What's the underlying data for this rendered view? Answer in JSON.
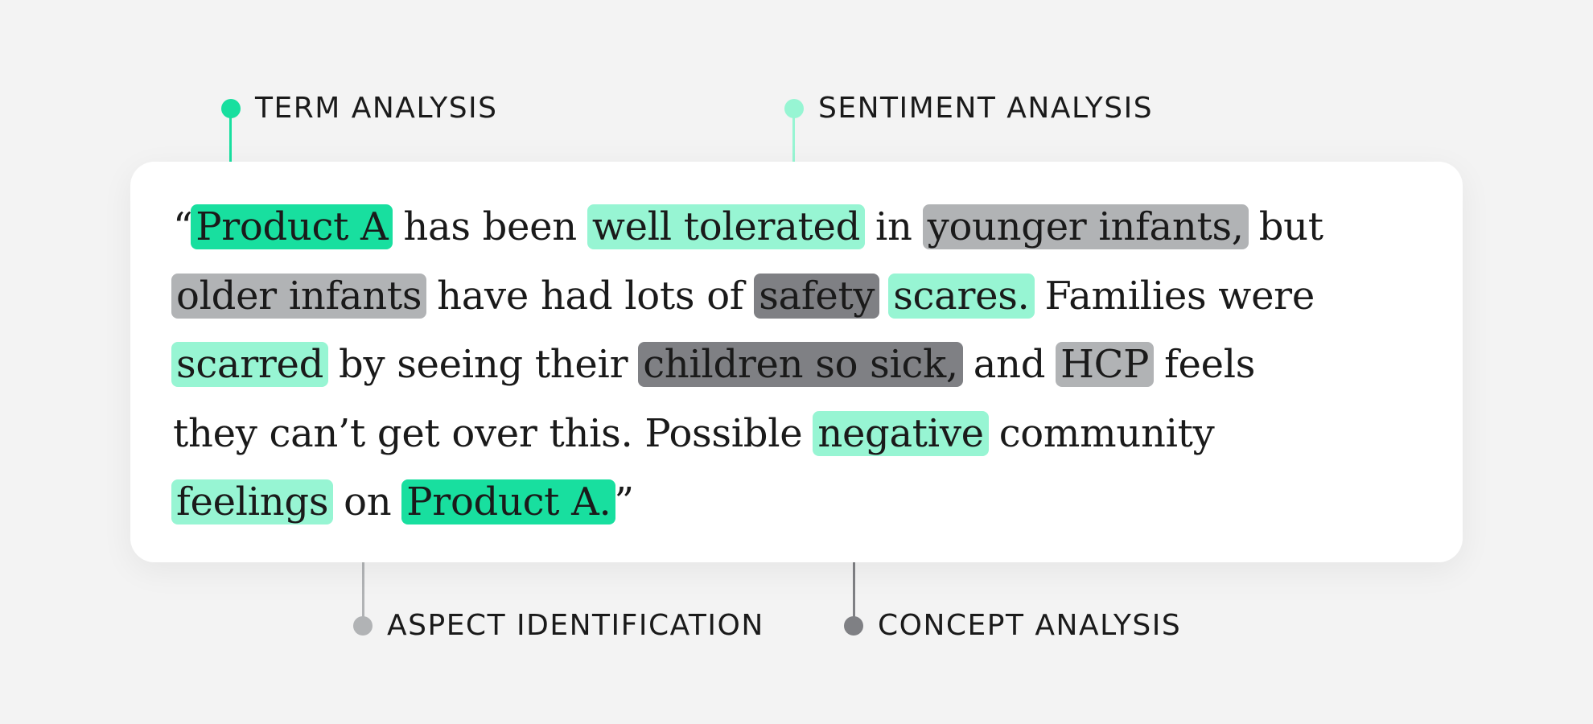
{
  "legend": {
    "term": {
      "label": "TERM ANALYSIS",
      "color": "#18df9f"
    },
    "sentiment": {
      "label": "SENTIMENT ANALYSIS",
      "color": "#97f5d3"
    },
    "aspect": {
      "label": "ASPECT IDENTIFICATION",
      "color": "#b1b3b5"
    },
    "concept": {
      "label": "CONCEPT ANALYSIS",
      "color": "#7f8084"
    }
  },
  "quote": {
    "line1": {
      "open_quote": "“",
      "product_a": "Product A",
      "t1": " has been ",
      "well_tolerated": "well tolerated",
      "t2": " in ",
      "younger_infants": "younger infants,",
      "t3": " but"
    },
    "line2": {
      "older_infants": "older infants",
      "t1": " have had lots of ",
      "safety": "safety",
      "t2": " ",
      "scares": "scares.",
      "t3": " Families were"
    },
    "line3": {
      "scarred": "scarred",
      "t1": " by seeing their ",
      "children_so_sick": "children so sick,",
      "t2": " and ",
      "hcp": "HCP",
      "t3": " feels"
    },
    "line4": {
      "t1": "they can’t get over this. Possible ",
      "negative": "negative",
      "t2": " community"
    },
    "line5": {
      "feelings": "feelings",
      "t1": " on ",
      "product_a_end": "Product A.",
      "close_quote": "”"
    }
  }
}
